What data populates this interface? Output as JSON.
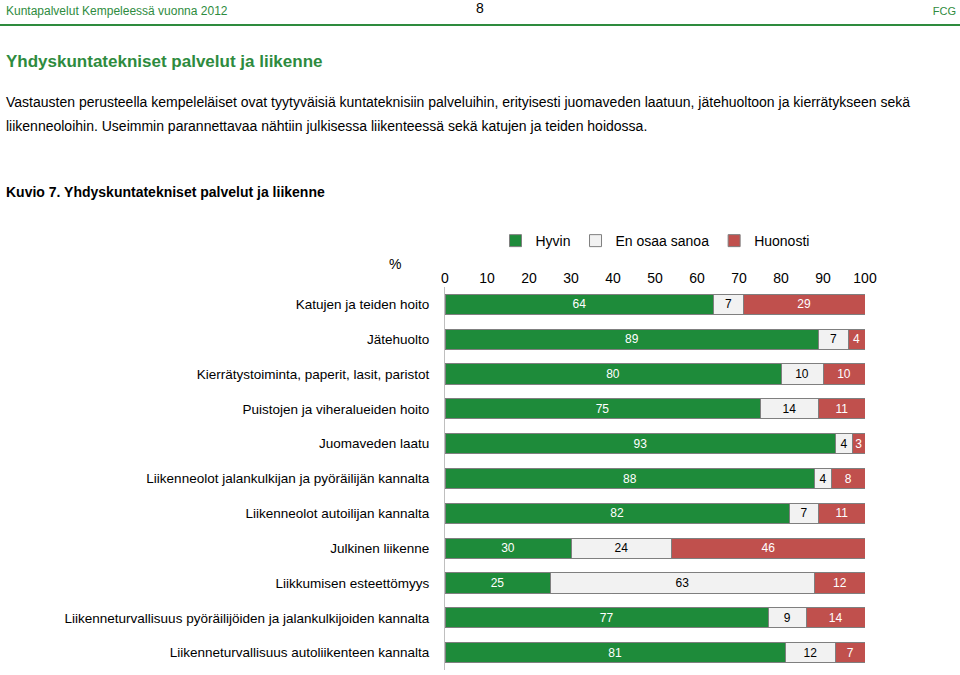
{
  "page": {
    "header_left": "Kuntapalvelut Kempeleessä vuonna 2012",
    "page_number": "8",
    "header_right": "FCG",
    "heading": "Yhdyskuntatekniset palvelut ja liikenne",
    "paragraph": [
      "Vastausten perusteella kempeleläiset ovat tyytyväisiä kuntateknisiin palveluihin, erityisesti juomaveden laatuun, jätehuoltoon ja kierrätykseen sekä",
      "liikenneoloihin. Useimmin parannettavaa nähtiin julkisessa liikenteessä sekä katujen ja teiden hoidossa."
    ],
    "caption": "Kuvio 7. Yhdyskuntatekniset palvelut ja liikenne"
  },
  "chart_data": {
    "type": "bar",
    "orientation": "horizontal",
    "stacked": true,
    "data_labels": true,
    "grid": false,
    "legend": "top",
    "xlabel": "%",
    "xlim": [
      0,
      100
    ],
    "xticks": [
      0,
      10,
      20,
      30,
      40,
      50,
      60,
      70,
      80,
      90,
      100
    ],
    "categories": [
      "Katujen ja teiden hoito",
      "Jätehuolto",
      "Kierrätystoiminta, paperit, lasit, paristot",
      "Puistojen ja viheralueiden hoito",
      "Juomaveden laatu",
      "Liikenneolot jalankulkijan ja pyöräilijän kannalta",
      "Liikenneolot autoilijan kannalta",
      "Julkinen liikenne",
      "Liikkumisen esteettömyys",
      "Liikenneturvallisuus pyöräilijöiden ja jalankulkijoiden kannalta",
      "Liikenneturvallisuus autoliikenteen kannalta"
    ],
    "series": [
      {
        "name": "Hyvin",
        "color": "#1e8b3a",
        "values": [
          64,
          89,
          80,
          75,
          93,
          88,
          82,
          30,
          25,
          77,
          81
        ]
      },
      {
        "name": "En osaa sanoa",
        "color": "#f2f2f2",
        "values": [
          7,
          7,
          10,
          14,
          4,
          4,
          7,
          24,
          63,
          9,
          12
        ]
      },
      {
        "name": "Huonosti",
        "color": "#c0504d",
        "values": [
          29,
          4,
          10,
          11,
          3,
          8,
          11,
          46,
          12,
          14,
          7
        ]
      }
    ]
  }
}
